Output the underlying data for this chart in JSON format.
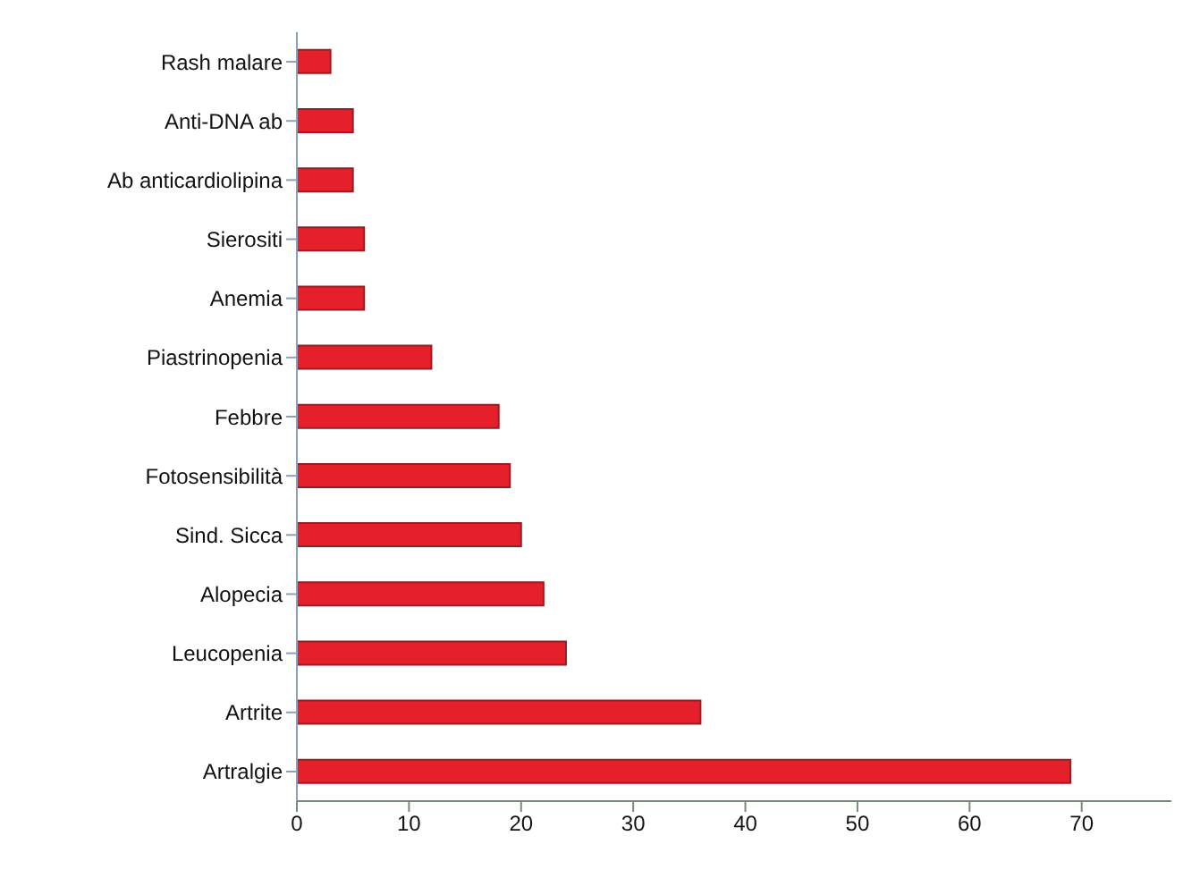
{
  "chart_data": {
    "type": "bar",
    "orientation": "horizontal",
    "categories": [
      "Rash malare",
      "Anti-DNA ab",
      "Ab anticardiolipina",
      "Sierositi",
      "Anemia",
      "Piastrinopenia",
      "Febbre",
      "Fotosensibilità",
      "Sind. Sicca",
      "Alopecia",
      "Leucopenia",
      "Artrite",
      "Artralgie"
    ],
    "values": [
      3,
      5,
      5,
      6,
      6,
      12,
      18,
      19,
      20,
      22,
      24,
      36,
      69
    ],
    "color": "#e5202b",
    "xlim": [
      0,
      78
    ],
    "xticks": [
      0,
      10,
      20,
      30,
      40,
      50,
      60,
      70
    ]
  }
}
